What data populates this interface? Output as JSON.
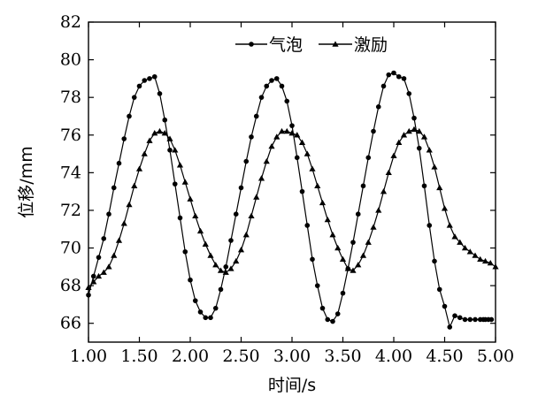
{
  "chart_data": {
    "type": "line",
    "title": "",
    "xlabel": "时间/s",
    "ylabel": "位移/mm",
    "xlim": [
      1.0,
      5.0
    ],
    "ylim": [
      65.0,
      82.0
    ],
    "xticks": [
      "1.00",
      "1.50",
      "2.00",
      "2.50",
      "3.00",
      "3.50",
      "4.00",
      "4.50",
      "5.00"
    ],
    "yticks": [
      "66",
      "68",
      "70",
      "72",
      "74",
      "76",
      "78",
      "80",
      "82"
    ],
    "grid": false,
    "legend_position": "top-right",
    "colors": {
      "line": "#000000",
      "axes": "#000000",
      "background": "#ffffff"
    },
    "series": [
      {
        "name": "气泡",
        "marker": "circle",
        "x": [
          1.0,
          1.05,
          1.1,
          1.15,
          1.2,
          1.25,
          1.3,
          1.35,
          1.4,
          1.45,
          1.5,
          1.55,
          1.6,
          1.65,
          1.7,
          1.75,
          1.8,
          1.85,
          1.9,
          1.95,
          2.0,
          2.05,
          2.1,
          2.15,
          2.2,
          2.25,
          2.3,
          2.35,
          2.4,
          2.45,
          2.5,
          2.55,
          2.6,
          2.65,
          2.7,
          2.75,
          2.8,
          2.85,
          2.9,
          2.95,
          3.0,
          3.05,
          3.1,
          3.15,
          3.2,
          3.25,
          3.3,
          3.35,
          3.4,
          3.45,
          3.5,
          3.55,
          3.6,
          3.65,
          3.7,
          3.75,
          3.8,
          3.85,
          3.9,
          3.95,
          4.0,
          4.05,
          4.1,
          4.15,
          4.2,
          4.25,
          4.3,
          4.35,
          4.4,
          4.45,
          4.5,
          4.55,
          4.6,
          4.65,
          4.7,
          4.75,
          4.8,
          4.85,
          4.88,
          4.9,
          4.93,
          4.96
        ],
        "y": [
          67.5,
          68.5,
          69.5,
          70.5,
          71.8,
          73.2,
          74.5,
          75.8,
          77.0,
          78.0,
          78.6,
          78.9,
          79.0,
          79.1,
          78.2,
          76.8,
          75.2,
          73.4,
          71.6,
          69.8,
          68.3,
          67.2,
          66.6,
          66.3,
          66.3,
          66.8,
          67.8,
          69.0,
          70.4,
          71.8,
          73.2,
          74.6,
          75.9,
          77.0,
          78.0,
          78.6,
          78.9,
          79.0,
          78.6,
          77.8,
          76.5,
          74.8,
          73.0,
          71.2,
          69.4,
          68.0,
          66.8,
          66.2,
          66.1,
          66.5,
          67.6,
          68.9,
          70.3,
          71.8,
          73.3,
          74.8,
          76.2,
          77.5,
          78.6,
          79.2,
          79.3,
          79.1,
          79.0,
          78.2,
          76.9,
          75.3,
          73.3,
          71.2,
          69.3,
          67.8,
          66.9,
          65.8,
          66.4,
          66.3,
          66.2,
          66.2,
          66.2,
          66.2,
          66.2,
          66.2,
          66.2,
          66.2
        ]
      },
      {
        "name": "激励",
        "marker": "triangle",
        "x": [
          1.0,
          1.05,
          1.1,
          1.15,
          1.2,
          1.25,
          1.3,
          1.35,
          1.4,
          1.45,
          1.5,
          1.55,
          1.6,
          1.65,
          1.7,
          1.75,
          1.8,
          1.85,
          1.9,
          1.95,
          2.0,
          2.05,
          2.1,
          2.15,
          2.2,
          2.25,
          2.3,
          2.35,
          2.4,
          2.45,
          2.5,
          2.55,
          2.6,
          2.65,
          2.7,
          2.75,
          2.8,
          2.85,
          2.9,
          2.95,
          3.0,
          3.05,
          3.1,
          3.15,
          3.2,
          3.25,
          3.3,
          3.35,
          3.4,
          3.45,
          3.5,
          3.55,
          3.6,
          3.65,
          3.7,
          3.75,
          3.8,
          3.85,
          3.9,
          3.95,
          4.0,
          4.05,
          4.1,
          4.15,
          4.2,
          4.25,
          4.3,
          4.35,
          4.4,
          4.45,
          4.5,
          4.55,
          4.6,
          4.65,
          4.7,
          4.75,
          4.8,
          4.85,
          4.9,
          4.95,
          5.0
        ],
        "y": [
          67.9,
          68.2,
          68.5,
          68.7,
          69.0,
          69.6,
          70.4,
          71.3,
          72.3,
          73.3,
          74.2,
          75.0,
          75.7,
          76.1,
          76.2,
          76.1,
          75.8,
          75.2,
          74.4,
          73.5,
          72.6,
          71.7,
          70.9,
          70.2,
          69.6,
          69.1,
          68.8,
          68.7,
          68.9,
          69.3,
          69.9,
          70.7,
          71.7,
          72.7,
          73.7,
          74.6,
          75.4,
          75.9,
          76.2,
          76.2,
          76.1,
          76.0,
          75.6,
          75.0,
          74.2,
          73.3,
          72.4,
          71.5,
          70.7,
          70.0,
          69.4,
          68.9,
          68.8,
          69.1,
          69.6,
          70.3,
          71.1,
          72.0,
          73.0,
          74.0,
          74.9,
          75.6,
          76.0,
          76.2,
          76.3,
          76.2,
          75.9,
          75.2,
          74.3,
          73.2,
          72.1,
          71.2,
          70.6,
          70.3,
          70.0,
          69.8,
          69.6,
          69.4,
          69.3,
          69.2,
          69.0
        ]
      }
    ]
  }
}
